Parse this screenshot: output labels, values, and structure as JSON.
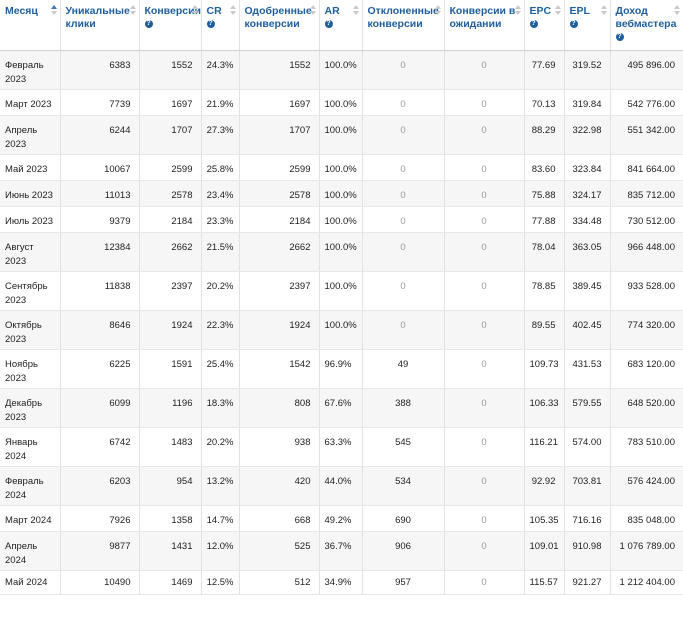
{
  "columns": [
    {
      "label": "Месяц",
      "help": false
    },
    {
      "label": "Уникальные клики",
      "help": false
    },
    {
      "label": "Конверсии",
      "help": true
    },
    {
      "label": "CR",
      "help": true
    },
    {
      "label": "Одобренные конверсии",
      "help": false
    },
    {
      "label": "AR",
      "help": true
    },
    {
      "label": "Отклоненные конверсии",
      "help": false
    },
    {
      "label": "Конверсии в ожидании",
      "help": false
    },
    {
      "label": "EPC",
      "help": true
    },
    {
      "label": "EPL",
      "help": true
    },
    {
      "label": "Доход вебмастера",
      "help": true
    }
  ],
  "help_symbol": "?",
  "sorted_column": "Месяц",
  "rows": [
    [
      "Февраль 2023",
      "6383",
      "1552",
      "24.3%",
      "1552",
      "100.0%",
      "0",
      "0",
      "77.69",
      "319.52",
      "495 896.00"
    ],
    [
      "Март 2023",
      "7739",
      "1697",
      "21.9%",
      "1697",
      "100.0%",
      "0",
      "0",
      "70.13",
      "319.84",
      "542 776.00"
    ],
    [
      "Апрель 2023",
      "6244",
      "1707",
      "27.3%",
      "1707",
      "100.0%",
      "0",
      "0",
      "88.29",
      "322.98",
      "551 342.00"
    ],
    [
      "Май 2023",
      "10067",
      "2599",
      "25.8%",
      "2599",
      "100.0%",
      "0",
      "0",
      "83.60",
      "323.84",
      "841 664.00"
    ],
    [
      "Июнь 2023",
      "11013",
      "2578",
      "23.4%",
      "2578",
      "100.0%",
      "0",
      "0",
      "75.88",
      "324.17",
      "835 712.00"
    ],
    [
      "Июль 2023",
      "9379",
      "2184",
      "23.3%",
      "2184",
      "100.0%",
      "0",
      "0",
      "77.88",
      "334.48",
      "730 512.00"
    ],
    [
      "Август 2023",
      "12384",
      "2662",
      "21.5%",
      "2662",
      "100.0%",
      "0",
      "0",
      "78.04",
      "363.05",
      "966 448.00"
    ],
    [
      "Сентябрь 2023",
      "11838",
      "2397",
      "20.2%",
      "2397",
      "100.0%",
      "0",
      "0",
      "78.85",
      "389.45",
      "933 528.00"
    ],
    [
      "Октябрь 2023",
      "8646",
      "1924",
      "22.3%",
      "1924",
      "100.0%",
      "0",
      "0",
      "89.55",
      "402.45",
      "774 320.00"
    ],
    [
      "Ноябрь 2023",
      "6225",
      "1591",
      "25.4%",
      "1542",
      "96.9%",
      "49",
      "0",
      "109.73",
      "431.53",
      "683 120.00"
    ],
    [
      "Декабрь 2023",
      "6099",
      "1196",
      "18.3%",
      "808",
      "67.6%",
      "388",
      "0",
      "106.33",
      "579.55",
      "648 520.00"
    ],
    [
      "Январь 2024",
      "6742",
      "1483",
      "20.2%",
      "938",
      "63.3%",
      "545",
      "0",
      "116.21",
      "574.00",
      "783 510.00"
    ],
    [
      "Февраль 2024",
      "6203",
      "954",
      "13.2%",
      "420",
      "44.0%",
      "534",
      "0",
      "92.92",
      "703.81",
      "576 424.00"
    ],
    [
      "Март 2024",
      "7926",
      "1358",
      "14.7%",
      "668",
      "49.2%",
      "690",
      "0",
      "105.35",
      "716.16",
      "835 048.00"
    ],
    [
      "Апрель 2024",
      "9877",
      "1431",
      "12.0%",
      "525",
      "36.7%",
      "906",
      "0",
      "109.01",
      "910.98",
      "1 076 789.00"
    ],
    [
      "Май 2024",
      "10490",
      "1469",
      "12.5%",
      "512",
      "34.9%",
      "957",
      "0",
      "115.57",
      "921.27",
      "1 212 404.00"
    ]
  ]
}
